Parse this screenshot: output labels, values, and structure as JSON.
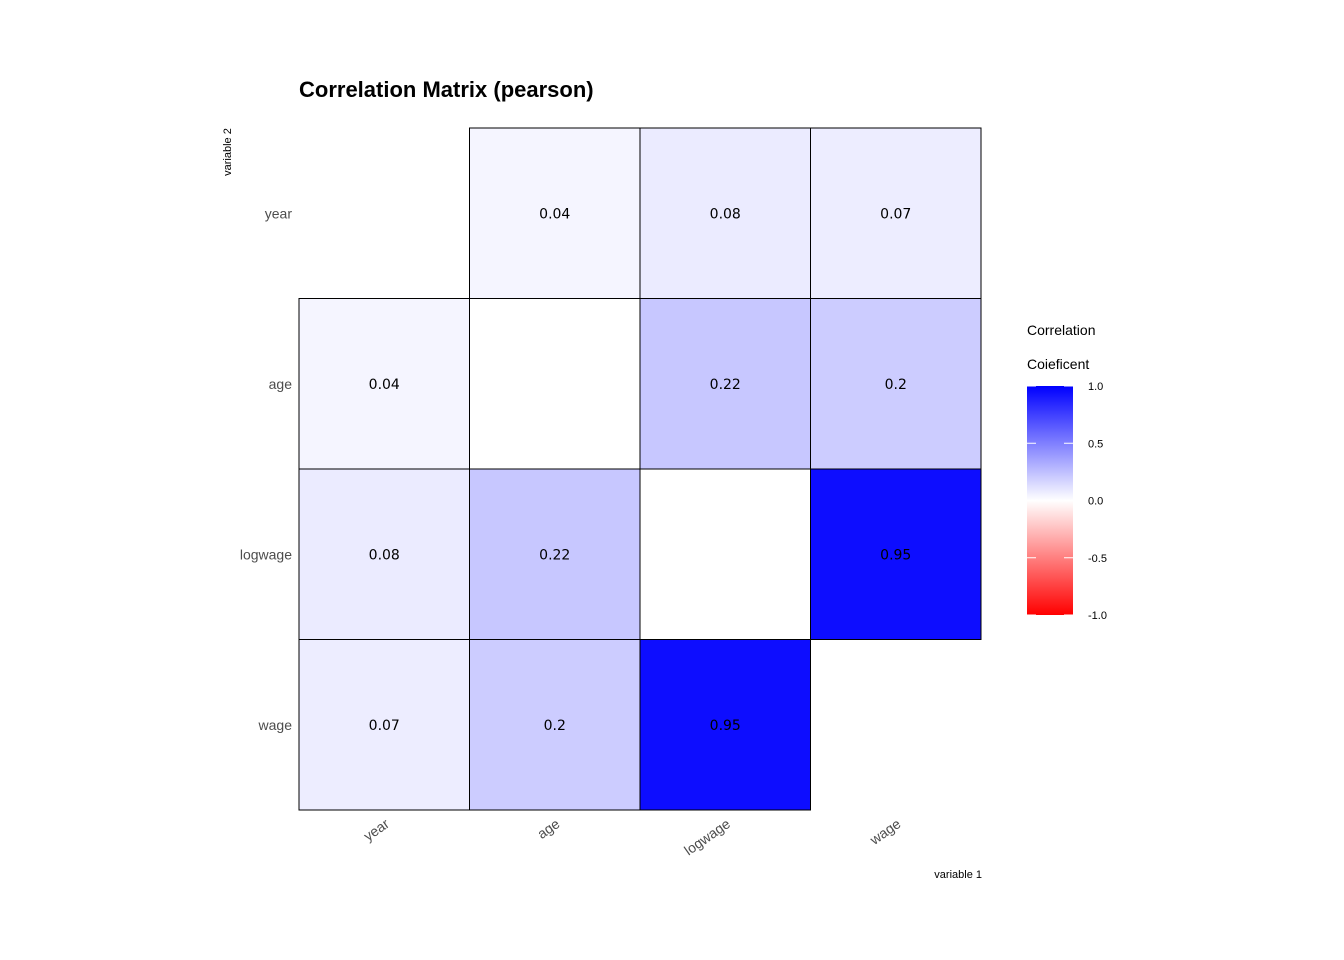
{
  "chart_data": {
    "type": "heatmap",
    "title": "Correlation Matrix (pearson)",
    "xlabel": "variable 1",
    "ylabel": "variable 2",
    "x_categories": [
      "year",
      "age",
      "logwage",
      "wage"
    ],
    "y_categories": [
      "year",
      "age",
      "logwage",
      "wage"
    ],
    "cells": [
      {
        "x": "age",
        "y": "year",
        "value": 0.04,
        "label": "0.04"
      },
      {
        "x": "logwage",
        "y": "year",
        "value": 0.08,
        "label": "0.08"
      },
      {
        "x": "wage",
        "y": "year",
        "value": 0.07,
        "label": "0.07"
      },
      {
        "x": "year",
        "y": "age",
        "value": 0.04,
        "label": "0.04"
      },
      {
        "x": "logwage",
        "y": "age",
        "value": 0.22,
        "label": "0.22"
      },
      {
        "x": "wage",
        "y": "age",
        "value": 0.2,
        "label": "0.2"
      },
      {
        "x": "year",
        "y": "logwage",
        "value": 0.08,
        "label": "0.08"
      },
      {
        "x": "age",
        "y": "logwage",
        "value": 0.22,
        "label": "0.22"
      },
      {
        "x": "wage",
        "y": "logwage",
        "value": 0.95,
        "label": "0.95"
      },
      {
        "x": "year",
        "y": "wage",
        "value": 0.07,
        "label": "0.07"
      },
      {
        "x": "age",
        "y": "wage",
        "value": 0.2,
        "label": "0.2"
      },
      {
        "x": "logwage",
        "y": "wage",
        "value": 0.95,
        "label": "0.95"
      }
    ],
    "legend": {
      "title_line1": "Correlation",
      "title_line2": "Coieficent",
      "range": [
        -1.0,
        1.0
      ],
      "ticks": [
        {
          "value": 1.0,
          "label": "1.0"
        },
        {
          "value": 0.5,
          "label": "0.5"
        },
        {
          "value": 0.0,
          "label": "0.0"
        },
        {
          "value": -0.5,
          "label": "-0.5"
        },
        {
          "value": -1.0,
          "label": "-1.0"
        }
      ],
      "colors": {
        "low": "#ff0000",
        "mid": "#ffffff",
        "high": "#0000ff"
      }
    }
  }
}
